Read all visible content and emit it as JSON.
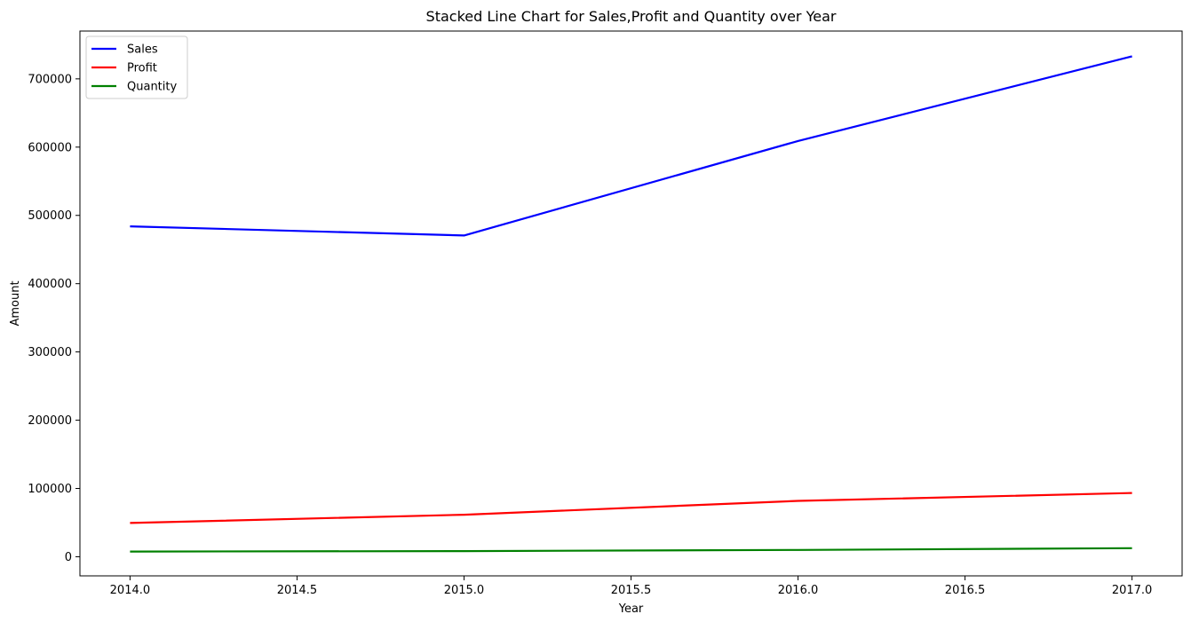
{
  "chart_data": {
    "type": "line",
    "title": "Stacked Line Chart for Sales,Profit and Quantity over Year",
    "xlabel": "Year",
    "ylabel": "Amount",
    "x": [
      2014,
      2015,
      2016,
      2017
    ],
    "xlim": [
      2013.85,
      2017.15
    ],
    "ylim": [
      -28000,
      770000
    ],
    "xticks": [
      2014.0,
      2014.5,
      2015.0,
      2015.5,
      2016.0,
      2016.5,
      2017.0
    ],
    "xtick_labels": [
      "2014.0",
      "2014.5",
      "2015.0",
      "2015.5",
      "2016.0",
      "2016.5",
      "2017.0"
    ],
    "yticks": [
      0,
      100000,
      200000,
      300000,
      400000,
      500000,
      600000,
      700000
    ],
    "ytick_labels": [
      "0",
      "100000",
      "200000",
      "300000",
      "400000",
      "500000",
      "600000",
      "700000"
    ],
    "grid": false,
    "legend_position": "upper-left",
    "series": [
      {
        "name": "Sales",
        "color": "#0000ff",
        "values": [
          484000,
          470500,
          609000,
          733000
        ]
      },
      {
        "name": "Profit",
        "color": "#ff0000",
        "values": [
          49500,
          61600,
          81800,
          93400
        ]
      },
      {
        "name": "Quantity",
        "color": "#008000",
        "values": [
          7600,
          8300,
          10000,
          12500
        ]
      }
    ]
  }
}
